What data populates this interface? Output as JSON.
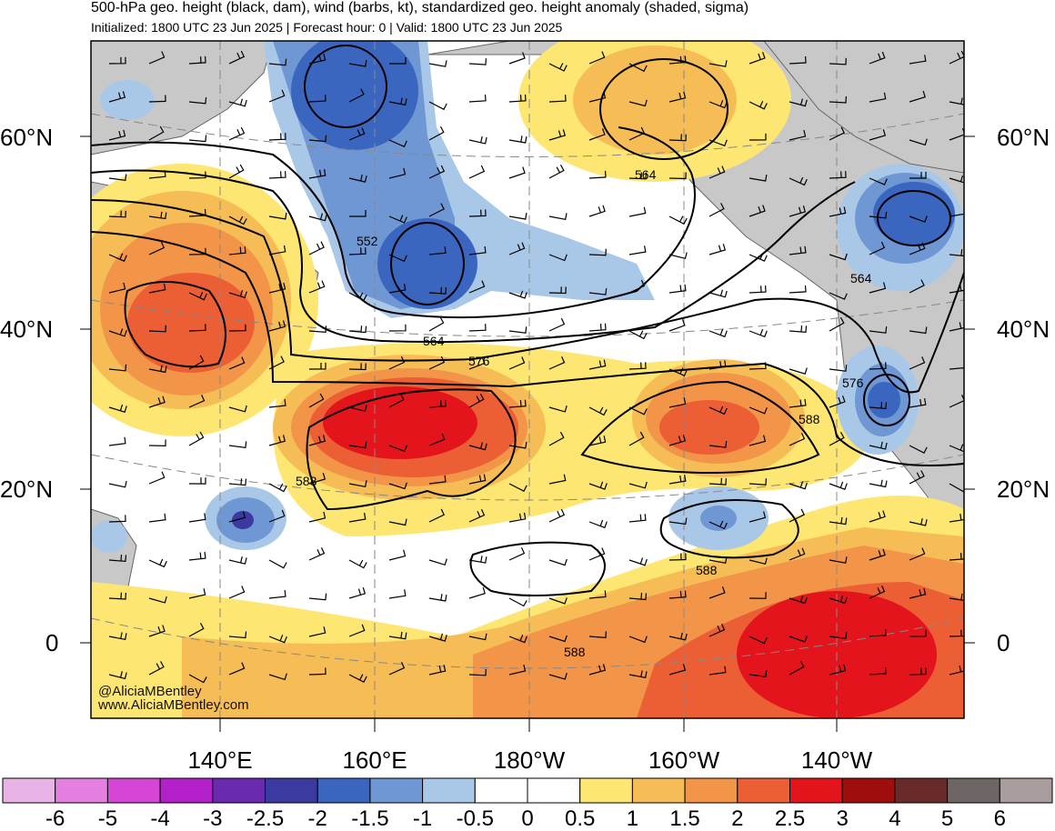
{
  "header": {
    "title": "500-hPa geo. height (black, dam), wind (barbs, kt), standardized geo. height anomaly (shaded, sigma)",
    "subtitle": "Initialized: 1800 UTC 23 Jun 2025 | Forecast hour: 0 | Valid: 1800 UTC 23 Jun 2025"
  },
  "map": {
    "lat_labels_left": [
      "60°N",
      "40°N",
      "20°N",
      "0"
    ],
    "lat_labels_right": [
      "60°N",
      "40°N",
      "20°N",
      "0"
    ],
    "lon_labels": [
      "140°E",
      "160°E",
      "180°W",
      "160°W",
      "140°W"
    ],
    "contour_labels": [
      "552",
      "564",
      "576",
      "588",
      "564",
      "564",
      "576",
      "588",
      "588",
      "588"
    ],
    "credit_handle": "@AliciaMBentley",
    "credit_url": "www.AliciaMBentley.com",
    "colors": {
      "land": "#c8c8c8",
      "coast": "#555555",
      "contour": "#000000"
    }
  },
  "colorbar": {
    "ticks": [
      "-6",
      "-5",
      "-4",
      "-3",
      "-2.5",
      "-2",
      "-1.5",
      "-1",
      "-0.5",
      "0",
      "0.5",
      "1",
      "1.5",
      "2",
      "2.5",
      "3",
      "4",
      "5",
      "6"
    ],
    "colors": [
      "#e8b4e6",
      "#e47fe0",
      "#d546d6",
      "#b31fc9",
      "#6a2ab0",
      "#3b3aa0",
      "#3b66c0",
      "#6f97d3",
      "#a9c8e8",
      "#ffffff",
      "#ffffff",
      "#fde672",
      "#f6bd57",
      "#f29548",
      "#ec5f35",
      "#e3141c",
      "#9f0d0d",
      "#6b2a2a",
      "#6e6565",
      "#a89c9c"
    ]
  }
}
